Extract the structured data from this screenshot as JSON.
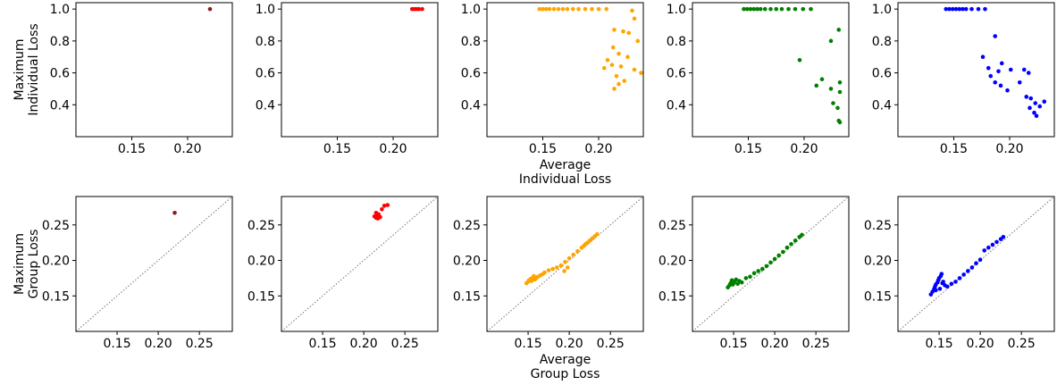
{
  "chart_data": {
    "type": "scatter",
    "rows": [
      {
        "ylabel": [
          "Maximum",
          "Individual Loss"
        ],
        "xlabel": [
          "Average",
          "Individual Loss"
        ],
        "xlim": [
          0.1,
          0.24
        ],
        "ylim": [
          0.2,
          1.04
        ],
        "xticks": [
          0.15,
          0.2
        ],
        "yticks": [
          0.4,
          0.6,
          0.8,
          1.0
        ],
        "diagonal": false
      },
      {
        "ylabel": [
          "Maximum",
          "Group Loss"
        ],
        "xlabel": [
          "Average",
          "Group Loss"
        ],
        "xlim": [
          0.1,
          0.29
        ],
        "ylim": [
          0.1,
          0.29
        ],
        "xticks": [
          0.15,
          0.2,
          0.25
        ],
        "yticks": [
          0.15,
          0.2,
          0.25
        ],
        "diagonal": true
      }
    ],
    "panels": [
      [
        {
          "color": "#8b1a1a",
          "points": [
            [
              0.22,
              1.0
            ]
          ]
        },
        {
          "color": "#ff0000",
          "points": [
            [
              0.217,
              1.0
            ],
            [
              0.219,
              1.0
            ],
            [
              0.221,
              1.0
            ],
            [
              0.223,
              1.0
            ],
            [
              0.226,
              1.0
            ]
          ]
        },
        {
          "color": "#ffa500",
          "points": [
            [
              0.147,
              1.0
            ],
            [
              0.15,
              1.0
            ],
            [
              0.153,
              1.0
            ],
            [
              0.156,
              1.0
            ],
            [
              0.16,
              1.0
            ],
            [
              0.164,
              1.0
            ],
            [
              0.168,
              1.0
            ],
            [
              0.172,
              1.0
            ],
            [
              0.177,
              1.0
            ],
            [
              0.182,
              1.0
            ],
            [
              0.188,
              1.0
            ],
            [
              0.194,
              1.0
            ],
            [
              0.2,
              1.0
            ],
            [
              0.207,
              1.0
            ],
            [
              0.23,
              0.99
            ],
            [
              0.232,
              0.94
            ],
            [
              0.214,
              0.87
            ],
            [
              0.222,
              0.86
            ],
            [
              0.227,
              0.85
            ],
            [
              0.235,
              0.8
            ],
            [
              0.213,
              0.76
            ],
            [
              0.218,
              0.72
            ],
            [
              0.226,
              0.7
            ],
            [
              0.208,
              0.68
            ],
            [
              0.212,
              0.65
            ],
            [
              0.22,
              0.64
            ],
            [
              0.205,
              0.63
            ],
            [
              0.232,
              0.62
            ],
            [
              0.238,
              0.6
            ],
            [
              0.216,
              0.58
            ],
            [
              0.223,
              0.55
            ],
            [
              0.218,
              0.53
            ],
            [
              0.214,
              0.5
            ]
          ]
        },
        {
          "color": "#008000",
          "points": [
            [
              0.146,
              1.0
            ],
            [
              0.149,
              1.0
            ],
            [
              0.152,
              1.0
            ],
            [
              0.155,
              1.0
            ],
            [
              0.158,
              1.0
            ],
            [
              0.161,
              1.0
            ],
            [
              0.165,
              1.0
            ],
            [
              0.17,
              1.0
            ],
            [
              0.175,
              1.0
            ],
            [
              0.18,
              1.0
            ],
            [
              0.186,
              1.0
            ],
            [
              0.192,
              1.0
            ],
            [
              0.199,
              1.0
            ],
            [
              0.206,
              1.0
            ],
            [
              0.231,
              0.87
            ],
            [
              0.224,
              0.8
            ],
            [
              0.196,
              0.68
            ],
            [
              0.216,
              0.56
            ],
            [
              0.211,
              0.52
            ],
            [
              0.232,
              0.54
            ],
            [
              0.224,
              0.5
            ],
            [
              0.232,
              0.48
            ],
            [
              0.226,
              0.41
            ],
            [
              0.23,
              0.38
            ],
            [
              0.231,
              0.3
            ],
            [
              0.232,
              0.29
            ]
          ]
        },
        {
          "color": "#0000ff",
          "points": [
            [
              0.143,
              1.0
            ],
            [
              0.146,
              1.0
            ],
            [
              0.149,
              1.0
            ],
            [
              0.152,
              1.0
            ],
            [
              0.155,
              1.0
            ],
            [
              0.158,
              1.0
            ],
            [
              0.161,
              1.0
            ],
            [
              0.166,
              1.0
            ],
            [
              0.172,
              1.0
            ],
            [
              0.178,
              1.0
            ],
            [
              0.187,
              0.83
            ],
            [
              0.193,
              0.66
            ],
            [
              0.176,
              0.7
            ],
            [
              0.181,
              0.63
            ],
            [
              0.19,
              0.61
            ],
            [
              0.201,
              0.62
            ],
            [
              0.213,
              0.62
            ],
            [
              0.217,
              0.6
            ],
            [
              0.183,
              0.58
            ],
            [
              0.187,
              0.54
            ],
            [
              0.192,
              0.52
            ],
            [
              0.198,
              0.49
            ],
            [
              0.209,
              0.54
            ],
            [
              0.215,
              0.45
            ],
            [
              0.219,
              0.44
            ],
            [
              0.223,
              0.41
            ],
            [
              0.227,
              0.39
            ],
            [
              0.231,
              0.42
            ],
            [
              0.218,
              0.38
            ],
            [
              0.222,
              0.35
            ],
            [
              0.224,
              0.33
            ]
          ]
        }
      ],
      [
        {
          "color": "#8b1a1a",
          "points": [
            [
              0.22,
              0.267
            ]
          ]
        },
        {
          "color": "#ff0000",
          "points": [
            [
              0.213,
              0.262
            ],
            [
              0.215,
              0.26
            ],
            [
              0.216,
              0.263
            ],
            [
              0.218,
              0.265
            ],
            [
              0.215,
              0.267
            ],
            [
              0.217,
              0.259
            ],
            [
              0.22,
              0.261
            ],
            [
              0.222,
              0.272
            ],
            [
              0.225,
              0.277
            ],
            [
              0.229,
              0.278
            ]
          ]
        },
        {
          "color": "#ffa500",
          "points": [
            [
              0.148,
              0.168
            ],
            [
              0.15,
              0.17
            ],
            [
              0.151,
              0.172
            ],
            [
              0.153,
              0.174
            ],
            [
              0.154,
              0.171
            ],
            [
              0.156,
              0.176
            ],
            [
              0.157,
              0.178
            ],
            [
              0.158,
              0.173
            ],
            [
              0.16,
              0.175
            ],
            [
              0.162,
              0.177
            ],
            [
              0.165,
              0.179
            ],
            [
              0.168,
              0.181
            ],
            [
              0.17,
              0.183
            ],
            [
              0.175,
              0.186
            ],
            [
              0.18,
              0.188
            ],
            [
              0.185,
              0.19
            ],
            [
              0.19,
              0.193
            ],
            [
              0.195,
              0.198
            ],
            [
              0.2,
              0.203
            ],
            [
              0.205,
              0.208
            ],
            [
              0.21,
              0.213
            ],
            [
              0.215,
              0.218
            ],
            [
              0.218,
              0.221
            ],
            [
              0.22,
              0.223
            ],
            [
              0.222,
              0.225
            ],
            [
              0.225,
              0.228
            ],
            [
              0.228,
              0.231
            ],
            [
              0.231,
              0.234
            ],
            [
              0.234,
              0.237
            ],
            [
              0.198,
              0.19
            ],
            [
              0.194,
              0.185
            ]
          ]
        },
        {
          "color": "#008000",
          "points": [
            [
              0.143,
              0.162
            ],
            [
              0.145,
              0.165
            ],
            [
              0.146,
              0.167
            ],
            [
              0.147,
              0.169
            ],
            [
              0.148,
              0.172
            ],
            [
              0.149,
              0.166
            ],
            [
              0.15,
              0.168
            ],
            [
              0.151,
              0.17
            ],
            [
              0.153,
              0.173
            ],
            [
              0.155,
              0.167
            ],
            [
              0.157,
              0.171
            ],
            [
              0.16,
              0.169
            ],
            [
              0.165,
              0.175
            ],
            [
              0.17,
              0.177
            ],
            [
              0.175,
              0.182
            ],
            [
              0.18,
              0.185
            ],
            [
              0.185,
              0.188
            ],
            [
              0.19,
              0.192
            ],
            [
              0.195,
              0.197
            ],
            [
              0.2,
              0.202
            ],
            [
              0.205,
              0.207
            ],
            [
              0.21,
              0.212
            ],
            [
              0.215,
              0.218
            ],
            [
              0.22,
              0.223
            ],
            [
              0.225,
              0.228
            ],
            [
              0.23,
              0.233
            ],
            [
              0.233,
              0.236
            ]
          ]
        },
        {
          "color": "#0000ff",
          "points": [
            [
              0.14,
              0.152
            ],
            [
              0.142,
              0.156
            ],
            [
              0.144,
              0.16
            ],
            [
              0.145,
              0.163
            ],
            [
              0.146,
              0.166
            ],
            [
              0.148,
              0.169
            ],
            [
              0.149,
              0.172
            ],
            [
              0.15,
              0.175
            ],
            [
              0.152,
              0.178
            ],
            [
              0.153,
              0.181
            ],
            [
              0.155,
              0.17
            ],
            [
              0.157,
              0.165
            ],
            [
              0.16,
              0.163
            ],
            [
              0.165,
              0.167
            ],
            [
              0.17,
              0.17
            ],
            [
              0.175,
              0.175
            ],
            [
              0.18,
              0.18
            ],
            [
              0.185,
              0.185
            ],
            [
              0.19,
              0.19
            ],
            [
              0.195,
              0.196
            ],
            [
              0.2,
              0.201
            ],
            [
              0.205,
              0.214
            ],
            [
              0.21,
              0.218
            ],
            [
              0.215,
              0.222
            ],
            [
              0.22,
              0.226
            ],
            [
              0.225,
              0.23
            ],
            [
              0.228,
              0.233
            ],
            [
              0.146,
              0.158
            ],
            [
              0.151,
              0.16
            ],
            [
              0.154,
              0.168
            ]
          ]
        }
      ]
    ]
  }
}
